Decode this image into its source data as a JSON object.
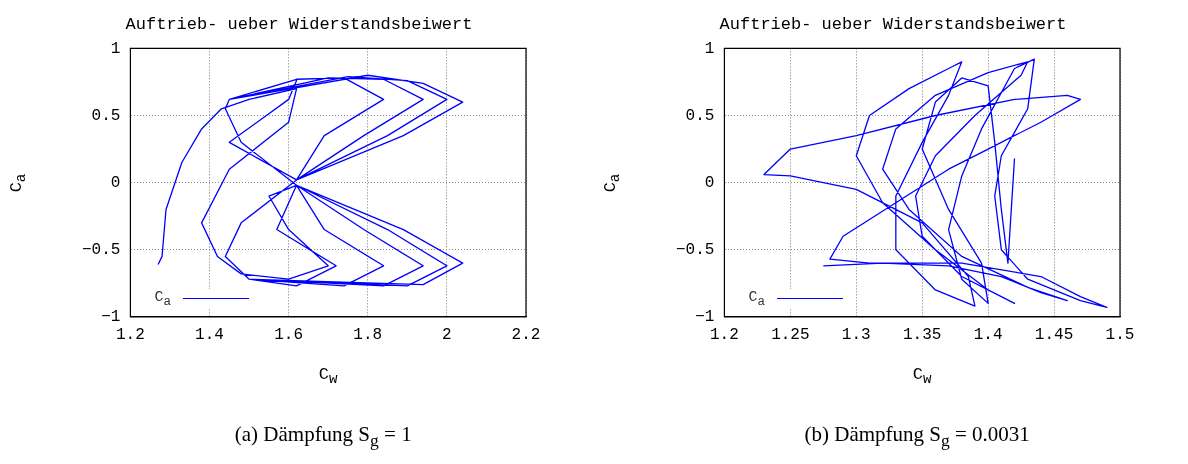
{
  "chart_data": [
    {
      "type": "line",
      "title": "Auftrieb- ueber Widerstandsbeiwert",
      "xlabel": "C$_{w}$",
      "ylabel": "C$_{a}$",
      "annotations": [
        "(a) Dämpfung S$_{g}$ = 1"
      ],
      "xlim": [
        1.2,
        2.2
      ],
      "xticks": [
        1.2,
        1.4,
        1.6,
        1.8,
        2,
        2.2
      ],
      "ylim": [
        -1,
        1
      ],
      "yticks": [
        -1,
        -0.5,
        0,
        0.5,
        1
      ],
      "grid": true,
      "legend": "bottom left",
      "series": [
        {
          "name": "C$_{a}$",
          "color": "#0000ff",
          "x": [
            1.27,
            1.28,
            1.29,
            1.33,
            1.38,
            1.43,
            1.5,
            1.62,
            1.6,
            1.45,
            1.38,
            1.42,
            1.48,
            1.6,
            1.7,
            1.6,
            1.55,
            1.62,
            1.48,
            1.44,
            1.45,
            1.62,
            1.62,
            1.6,
            1.45,
            1.62,
            1.48,
            1.44,
            1.5,
            1.62,
            1.72,
            1.57,
            1.62,
            1.48,
            1.44,
            1.45,
            1.62,
            1.74,
            1.84,
            1.69,
            1.62,
            1.48,
            1.44,
            1.5,
            1.74,
            1.84,
            1.69,
            1.62,
            1.48,
            1.44,
            1.45,
            1.7,
            1.84,
            1.94,
            1.79,
            1.62,
            1.48,
            1.44,
            1.5,
            1.84,
            1.94,
            1.79,
            1.62,
            1.48,
            1.44,
            1.45,
            1.75,
            1.9,
            2.0,
            1.85,
            1.62,
            1.48,
            1.44,
            1.5,
            1.9,
            2.0,
            1.85,
            1.62,
            1.48,
            1.44,
            1.45,
            1.8,
            1.94,
            2.04,
            1.89,
            1.62,
            1.48,
            1.44,
            1.5,
            1.94,
            2.04,
            1.89,
            1.62,
            1.48,
            1.44
          ],
          "values": [
            -0.61,
            -0.55,
            -0.2,
            0.15,
            0.4,
            0.55,
            0.62,
            0.7,
            0.45,
            0.1,
            -0.3,
            -0.55,
            -0.68,
            -0.72,
            -0.62,
            -0.35,
            -0.1,
            -0.02,
            0.3,
            0.55,
            0.62,
            0.77,
            0.76,
            0.62,
            0.3,
            0.02,
            -0.3,
            -0.55,
            -0.72,
            -0.77,
            -0.62,
            -0.35,
            -0.02,
            0.3,
            0.55,
            0.62,
            0.77,
            0.78,
            0.62,
            0.35,
            0.02,
            -0.3,
            -0.55,
            -0.72,
            -0.77,
            -0.62,
            -0.35,
            -0.02,
            0.3,
            0.55,
            0.62,
            0.78,
            0.77,
            0.62,
            0.35,
            0.02,
            -0.3,
            -0.55,
            -0.72,
            -0.77,
            -0.62,
            -0.35,
            -0.02,
            0.3,
            0.55,
            0.62,
            0.79,
            0.76,
            0.62,
            0.35,
            0.02,
            -0.3,
            -0.55,
            -0.72,
            -0.77,
            -0.62,
            -0.35,
            -0.02,
            0.3,
            0.55,
            0.62,
            0.8,
            0.74,
            0.6,
            0.35,
            0.02,
            -0.3,
            -0.55,
            -0.72,
            -0.76,
            -0.6,
            -0.35,
            -0.02,
            0.3,
            0.55
          ]
        }
      ]
    },
    {
      "type": "line",
      "title": "Auftrieb- ueber Widerstandsbeiwert",
      "xlabel": "C$_{w}$",
      "ylabel": "C$_{a}$",
      "annotations": [
        "(b) Dämpfung S$_{g}$ = 0.0031"
      ],
      "xlim": [
        1.2,
        1.5
      ],
      "xticks": [
        1.2,
        1.25,
        1.3,
        1.35,
        1.4,
        1.45,
        1.5
      ],
      "ylim": [
        -1,
        1
      ],
      "yticks": [
        -1,
        -0.5,
        0,
        0.5,
        1
      ],
      "grid": true,
      "legend": "bottom left",
      "series": [
        {
          "name": "C$_{a}$",
          "color": "#0000ff",
          "x": [
            1.275,
            1.32,
            1.37,
            1.41,
            1.44,
            1.46,
            1.43,
            1.38,
            1.34,
            1.32,
            1.33,
            1.36,
            1.4,
            1.43,
            1.425,
            1.39,
            1.36,
            1.345,
            1.35,
            1.38,
            1.41,
            1.42,
            1.4,
            1.36,
            1.32,
            1.3,
            1.31,
            1.34,
            1.37,
            1.38,
            1.37,
            1.35,
            1.33,
            1.33,
            1.36,
            1.39,
            1.385,
            1.35,
            1.3,
            1.25,
            1.23,
            1.25,
            1.3,
            1.36,
            1.42,
            1.46,
            1.47,
            1.44,
            1.4,
            1.37,
            1.33,
            1.29,
            1.28,
            1.31,
            1.38,
            1.44,
            1.47,
            1.49,
            1.47,
            1.43,
            1.41,
            1.405,
            1.41,
            1.43,
            1.435,
            1.42,
            1.395,
            1.38,
            1.37,
            1.38,
            1.4,
            1.395,
            1.37,
            1.35,
            1.36,
            1.38,
            1.4,
            1.405,
            1.41,
            1.415,
            1.42
          ],
          "values": [
            -0.62,
            -0.6,
            -0.62,
            -0.7,
            -0.82,
            -0.88,
            -0.78,
            -0.55,
            -0.2,
            0.1,
            0.4,
            0.65,
            0.82,
            0.9,
            0.8,
            0.5,
            0.2,
            -0.1,
            -0.4,
            -0.7,
            -0.85,
            -0.9,
            -0.8,
            -0.5,
            -0.15,
            0.2,
            0.5,
            0.7,
            0.85,
            0.9,
            0.65,
            0.3,
            -0.1,
            -0.5,
            -0.8,
            -0.92,
            -0.7,
            -0.3,
            -0.05,
            0.05,
            0.06,
            0.25,
            0.35,
            0.5,
            0.62,
            0.65,
            0.62,
            0.45,
            0.25,
            0.1,
            -0.15,
            -0.4,
            -0.57,
            -0.6,
            -0.6,
            -0.7,
            -0.85,
            -0.93,
            -0.88,
            -0.72,
            -0.5,
            -0.1,
            0.2,
            0.55,
            0.92,
            0.85,
            0.4,
            0.05,
            -0.35,
            -0.72,
            -0.9,
            -0.6,
            -0.2,
            0.25,
            0.6,
            0.78,
            0.72,
            0.3,
            -0.2,
            -0.6,
            0.18
          ]
        }
      ]
    }
  ]
}
